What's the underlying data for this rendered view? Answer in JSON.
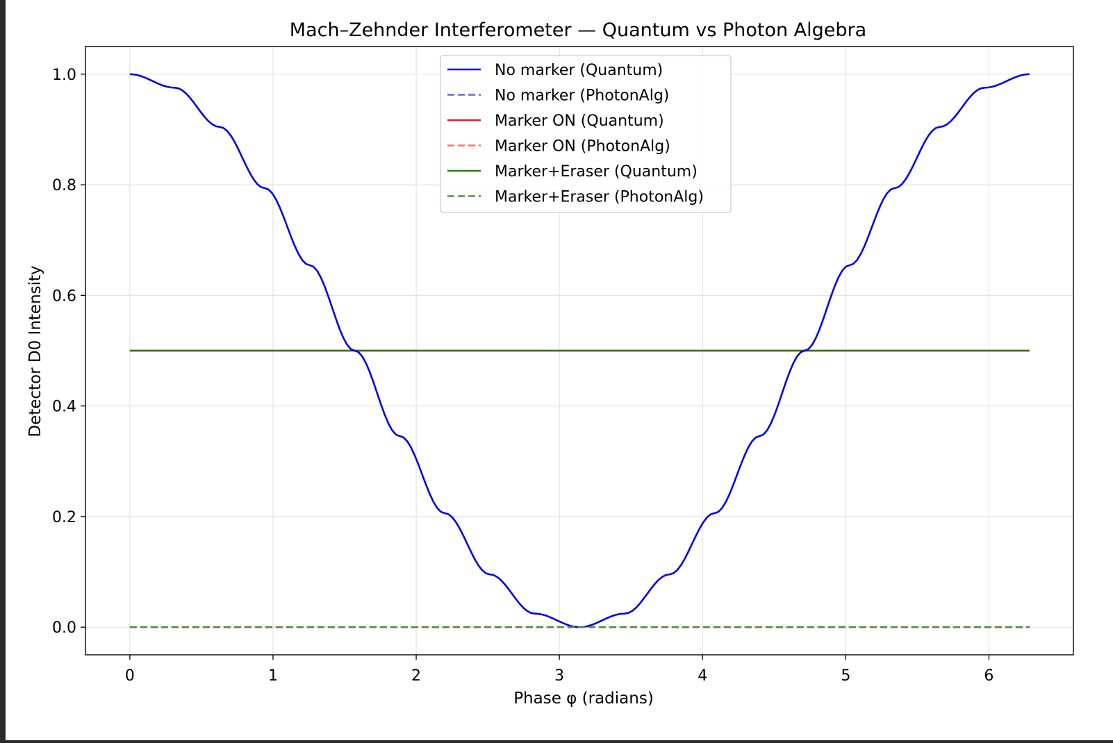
{
  "chart_data": {
    "type": "line",
    "title": "Mach–Zehnder Interferometer — Quantum vs Photon Algebra",
    "xlabel": "Phase φ (radians)",
    "ylabel": "Detector D0 Intensity",
    "xlim": [
      -0.31,
      6.59
    ],
    "ylim": [
      -0.05,
      1.05
    ],
    "xticks": [
      0,
      1,
      2,
      3,
      4,
      5,
      6
    ],
    "yticks": [
      0.0,
      0.2,
      0.4,
      0.6,
      0.8,
      1.0
    ],
    "xtick_labels": [
      "0",
      "1",
      "2",
      "3",
      "4",
      "5",
      "6"
    ],
    "ytick_labels": [
      "0.0",
      "0.2",
      "0.4",
      "0.6",
      "0.8",
      "1.0"
    ],
    "grid": true,
    "legend_position": "upper-center",
    "series": [
      {
        "name": "No marker (Quantum)",
        "color": "#0000ee",
        "style": "solid",
        "opacity": 1.0,
        "x": [
          0,
          0.3142,
          0.6283,
          0.9425,
          1.2566,
          1.5708,
          1.885,
          2.1991,
          2.5133,
          2.8274,
          3.1416,
          3.4558,
          3.7699,
          4.0841,
          4.3982,
          4.7124,
          5.0265,
          5.3407,
          5.6549,
          5.969,
          6.2832
        ],
        "y": [
          1.0,
          0.9755,
          0.9045,
          0.7939,
          0.6545,
          0.5,
          0.3455,
          0.2061,
          0.0955,
          0.0245,
          0.0,
          0.0245,
          0.0955,
          0.2061,
          0.3455,
          0.5,
          0.6545,
          0.7939,
          0.9045,
          0.9755,
          1.0
        ]
      },
      {
        "name": "No marker (PhotonAlg)",
        "color": "#6464f5",
        "style": "dashed",
        "opacity": 1.0,
        "x": [
          0,
          6.2832
        ],
        "y": [
          0.0,
          0.0
        ]
      },
      {
        "name": "Marker ON (Quantum)",
        "color": "#ee1c1c",
        "style": "solid",
        "opacity": 1.0,
        "x": [
          0,
          6.2832
        ],
        "y": [
          0.5,
          0.5
        ]
      },
      {
        "name": "Marker ON (PhotonAlg)",
        "color": "#f07070",
        "style": "dashed",
        "opacity": 1.0,
        "x": [
          0,
          6.2832
        ],
        "y": [
          0.0,
          0.0
        ]
      },
      {
        "name": "Marker+Eraser (Quantum)",
        "color": "#2e7a12",
        "style": "solid",
        "opacity": 1.0,
        "x": [
          0,
          6.2832
        ],
        "y": [
          0.5,
          0.5
        ]
      },
      {
        "name": "Marker+Eraser (PhotonAlg)",
        "color": "#5a8a3c",
        "style": "dashed",
        "opacity": 1.0,
        "x": [
          0,
          6.2832
        ],
        "y": [
          0.0,
          0.0
        ]
      }
    ]
  }
}
